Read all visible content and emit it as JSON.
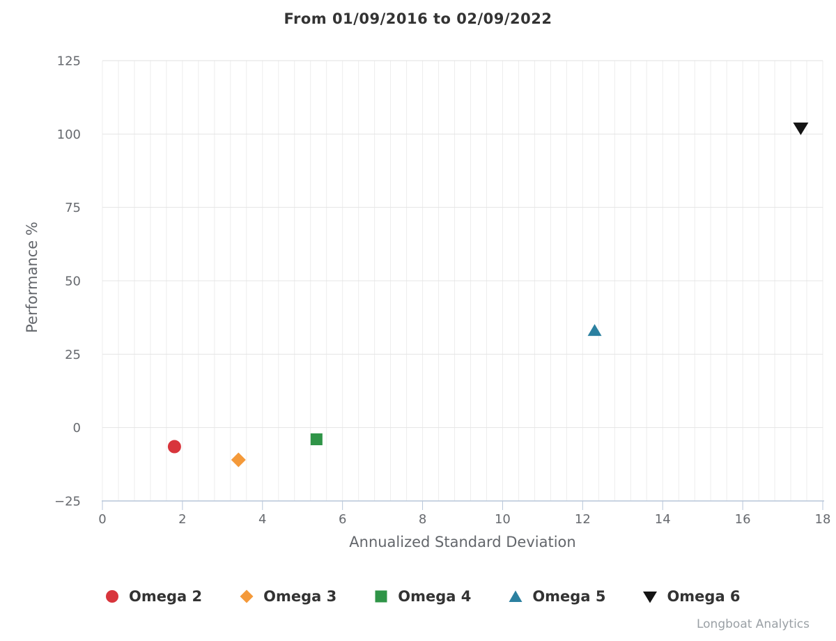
{
  "title": "From 01/09/2016 to 02/09/2022",
  "watermark": "Longboat Analytics",
  "palette": {
    "grid_minor": "#ededed",
    "grid_major": "#e4e4e4",
    "plot_border": "#e0e0e0",
    "axis_line": "#b7c6d9",
    "tick_label_color": "#66696e",
    "axis_title_color": "#63666b",
    "title_color": "#333333",
    "legend_text_color": "#333333",
    "watermark_color": "#9aa0a5"
  },
  "chart_data": {
    "type": "scatter",
    "title": "From 01/09/2016 to 02/09/2022",
    "xlabel": "Annualized Standard Deviation",
    "ylabel": "Performance %",
    "xlim": [
      0,
      18
    ],
    "ylim": [
      -25,
      125
    ],
    "x_ticks": [
      0,
      2,
      4,
      6,
      8,
      10,
      12,
      14,
      16,
      18
    ],
    "y_ticks": [
      -25,
      0,
      25,
      50,
      75,
      100,
      125
    ],
    "x_minor_step": 0.4,
    "grid": true,
    "legend_position": "bottom",
    "series": [
      {
        "name": "Omega 2",
        "marker": "circle",
        "color": "#d8353c",
        "points": [
          {
            "x": 1.8,
            "y": -6.5
          }
        ]
      },
      {
        "name": "Omega 3",
        "marker": "diamond",
        "color": "#f49939",
        "points": [
          {
            "x": 3.4,
            "y": -11
          }
        ]
      },
      {
        "name": "Omega 4",
        "marker": "square",
        "color": "#2f9447",
        "points": [
          {
            "x": 5.35,
            "y": -4
          }
        ]
      },
      {
        "name": "Omega 5",
        "marker": "triangle-up",
        "color": "#2b80a0",
        "points": [
          {
            "x": 12.3,
            "y": 33
          }
        ]
      },
      {
        "name": "Omega 6",
        "marker": "triangle-down",
        "color": "#141414",
        "points": [
          {
            "x": 17.45,
            "y": 102
          }
        ]
      }
    ]
  }
}
